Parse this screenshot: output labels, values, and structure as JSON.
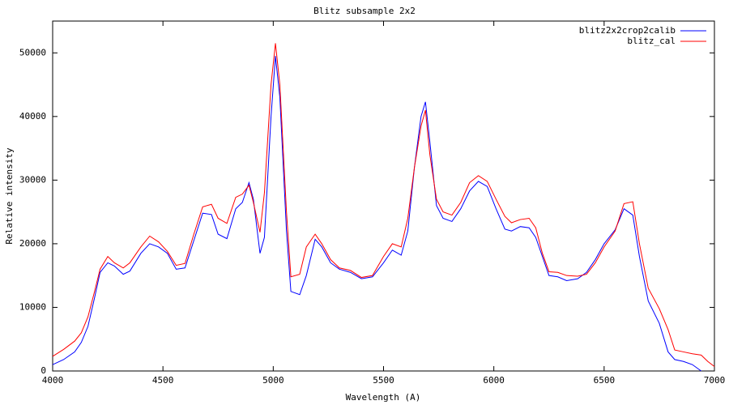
{
  "chart_data": {
    "type": "line",
    "title": "Blitz subsample 2x2",
    "x_label": "Wavelength (A)",
    "y_label": "Relative intensity",
    "xlim": [
      4000,
      7000
    ],
    "xticks": [
      4000,
      4500,
      5000,
      5500,
      6000,
      6500,
      7000
    ],
    "ylim": [
      0,
      55000
    ],
    "yticks": [
      0,
      10000,
      20000,
      30000,
      40000,
      50000
    ],
    "grid": false,
    "legend": "top-right",
    "x": [
      4000,
      4050,
      4100,
      4130,
      4160,
      4190,
      4215,
      4250,
      4280,
      4320,
      4350,
      4400,
      4440,
      4480,
      4520,
      4560,
      4600,
      4640,
      4680,
      4720,
      4750,
      4790,
      4830,
      4860,
      4890,
      4910,
      4940,
      4960,
      4990,
      5010,
      5030,
      5060,
      5080,
      5120,
      5150,
      5190,
      5220,
      5260,
      5300,
      5350,
      5400,
      5450,
      5500,
      5540,
      5580,
      5610,
      5640,
      5670,
      5690,
      5710,
      5740,
      5770,
      5810,
      5850,
      5890,
      5930,
      5970,
      6010,
      6050,
      6080,
      6120,
      6160,
      6190,
      6220,
      6250,
      6290,
      6330,
      6380,
      6420,
      6460,
      6500,
      6550,
      6590,
      6630,
      6660,
      6700,
      6750,
      6790,
      6820,
      6860,
      6900,
      6940,
      6970,
      7000
    ],
    "series": [
      {
        "name": "blitz2x2crop2calib",
        "color": "#0000ff",
        "values": [
          1000,
          1800,
          3000,
          4500,
          7000,
          11500,
          15500,
          17000,
          16500,
          15200,
          15700,
          18500,
          20000,
          19500,
          18500,
          16000,
          16200,
          20500,
          24800,
          24600,
          21500,
          20800,
          25500,
          26500,
          29600,
          27000,
          18500,
          21000,
          40000,
          49500,
          43000,
          22000,
          12500,
          12000,
          15000,
          20700,
          19500,
          17000,
          16000,
          15500,
          14500,
          14800,
          17000,
          19000,
          18200,
          22000,
          32000,
          40000,
          42300,
          36000,
          26000,
          24000,
          23500,
          25500,
          28300,
          29800,
          29000,
          25500,
          22300,
          22000,
          22700,
          22500,
          21000,
          18000,
          15000,
          14800,
          14200,
          14500,
          15500,
          17500,
          20000,
          22200,
          25500,
          24500,
          18000,
          11000,
          7500,
          3000,
          1800,
          1500,
          1000,
          0,
          null,
          null
        ]
      },
      {
        "name": "blitz_cal",
        "color": "#ff0000",
        "values": [
          2300,
          3400,
          4700,
          6000,
          8500,
          12500,
          16000,
          18000,
          17000,
          16200,
          17000,
          19500,
          21200,
          20300,
          18800,
          16600,
          16900,
          21500,
          25800,
          26200,
          24000,
          23200,
          27300,
          27800,
          29200,
          26500,
          21800,
          28000,
          45000,
          51500,
          45000,
          25000,
          14800,
          15200,
          19500,
          21500,
          20000,
          17500,
          16200,
          15800,
          14700,
          15000,
          18000,
          20000,
          19500,
          24000,
          32000,
          38500,
          41000,
          34000,
          27000,
          25000,
          24500,
          26500,
          29600,
          30700,
          29800,
          27000,
          24300,
          23300,
          23800,
          24000,
          22500,
          18500,
          15600,
          15500,
          15000,
          14900,
          15200,
          17000,
          19500,
          22000,
          26300,
          26600,
          20000,
          13000,
          9800,
          6500,
          3300,
          3000,
          2700,
          2500,
          1500,
          700
        ]
      }
    ]
  }
}
